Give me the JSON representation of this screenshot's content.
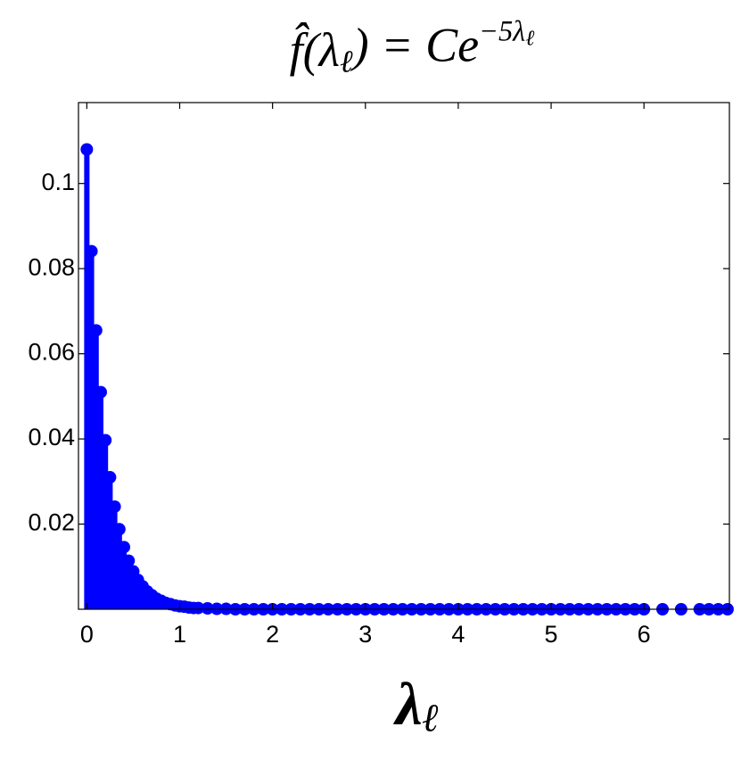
{
  "chart_data": {
    "type": "stem",
    "title": [
      {
        "text": "f̂(λ"
      },
      {
        "text": "ℓ",
        "shift": "sub"
      },
      {
        "text": ") = Ce"
      },
      {
        "text": "−5λ",
        "shift": "super"
      },
      {
        "text": "ℓ",
        "shift": "supersub"
      }
    ],
    "x_label": [
      {
        "text": "λ"
      },
      {
        "text": "ℓ",
        "shift": "sub"
      }
    ],
    "color": "#0000ff",
    "x": [
      0,
      0.05,
      0.1,
      0.15,
      0.2,
      0.25,
      0.3,
      0.35,
      0.4,
      0.45,
      0.5,
      0.55,
      0.6,
      0.65,
      0.7,
      0.75,
      0.8,
      0.85,
      0.9,
      0.95,
      1.0,
      1.05,
      1.1,
      1.15,
      1.2,
      1.3,
      1.4,
      1.5,
      1.6,
      1.7,
      1.8,
      1.9,
      2.0,
      2.1,
      2.2,
      2.3,
      2.4,
      2.5,
      2.6,
      2.7,
      2.8,
      2.9,
      3.0,
      3.1,
      3.2,
      3.3,
      3.4,
      3.5,
      3.6,
      3.7,
      3.8,
      3.9,
      4.0,
      4.1,
      4.2,
      4.3,
      4.4,
      4.5,
      4.6,
      4.7,
      4.8,
      4.9,
      5.0,
      5.1,
      5.2,
      5.3,
      5.4,
      5.5,
      5.6,
      5.7,
      5.8,
      5.9,
      6.0,
      6.2,
      6.4,
      6.6,
      6.7,
      6.8,
      6.9
    ],
    "values": [
      0.108,
      0.0841,
      0.0655,
      0.051,
      0.0397,
      0.031,
      0.0241,
      0.0188,
      0.0146,
      0.0114,
      0.0089,
      0.0069,
      0.0054,
      0.0042,
      0.0033,
      0.0025,
      0.002,
      0.0015,
      0.0012,
      0.0009,
      0.0007,
      0.0006,
      0.0004,
      0.0003,
      0.0003,
      0.0002,
      0.0001,
      0.0001,
      0,
      0,
      0,
      0,
      0,
      0,
      0,
      0,
      0,
      0,
      0,
      0,
      0,
      0,
      0,
      0,
      0,
      0,
      0,
      0,
      0,
      0,
      0,
      0,
      0,
      0,
      0,
      0,
      0,
      0,
      0,
      0,
      0,
      0,
      0,
      0,
      0,
      0,
      0,
      0,
      0,
      0,
      0,
      0,
      0,
      0,
      0,
      0,
      0,
      0,
      0
    ],
    "xlim": [
      -0.09,
      6.92
    ],
    "xticks": [
      0,
      1,
      2,
      3,
      4,
      5,
      6
    ],
    "ylim": [
      0,
      0.119
    ],
    "yticks": [
      0.02,
      0.04,
      0.06,
      0.08,
      0.1
    ]
  }
}
